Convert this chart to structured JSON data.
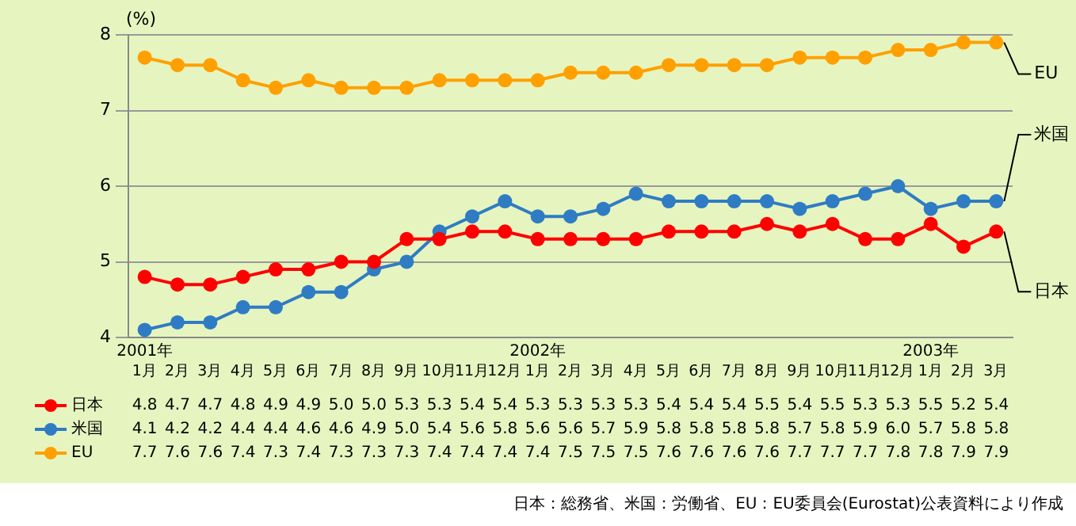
{
  "chart_data": {
    "type": "line",
    "ylabel": "(%)",
    "categories": [
      "2001年\n1月",
      "2月",
      "3月",
      "4月",
      "5月",
      "6月",
      "7月",
      "8月",
      "9月",
      "10月",
      "11月",
      "12月",
      "2002年\n1月",
      "2月",
      "3月",
      "4月",
      "5月",
      "6月",
      "7月",
      "8月",
      "9月",
      "10月",
      "11月",
      "12月",
      "2003年\n1月",
      "2月",
      "3月"
    ],
    "series": [
      {
        "name": "日本",
        "color": "#ff0000",
        "values": [
          4.8,
          4.7,
          4.7,
          4.8,
          4.9,
          4.9,
          5.0,
          5.0,
          5.3,
          5.3,
          5.4,
          5.4,
          5.3,
          5.3,
          5.3,
          5.3,
          5.4,
          5.4,
          5.4,
          5.5,
          5.4,
          5.5,
          5.3,
          5.3,
          5.5,
          5.2,
          5.4
        ],
        "value_labels": [
          "4.8",
          "4.7",
          "4.7",
          "4.8",
          "4.9",
          "4.9",
          "5.0",
          "5.0",
          "5.3",
          "5.3",
          "5.4",
          "5.4",
          "5.3",
          "5.3",
          "5.3",
          "5.3",
          "5.4",
          "5.4",
          "5.4",
          "5.5",
          "5.4",
          "5.5",
          "5.3",
          "5.3",
          "5.5",
          "5.2",
          "5.4"
        ]
      },
      {
        "name": "米国",
        "color": "#2f7cc4",
        "values": [
          4.1,
          4.2,
          4.2,
          4.4,
          4.4,
          4.6,
          4.6,
          4.9,
          5.0,
          5.4,
          5.6,
          5.8,
          5.6,
          5.6,
          5.7,
          5.9,
          5.8,
          5.8,
          5.8,
          5.8,
          5.7,
          5.8,
          5.9,
          6.0,
          5.7,
          5.8,
          5.8
        ],
        "value_labels": [
          "4.1",
          "4.2",
          "4.2",
          "4.4",
          "4.4",
          "4.6",
          "4.6",
          "4.9",
          "5.0",
          "5.4",
          "5.6",
          "5.8",
          "5.6",
          "5.6",
          "5.7",
          "5.9",
          "5.8",
          "5.8",
          "5.8",
          "5.8",
          "5.7",
          "5.8",
          "5.9",
          "6.0",
          "5.7",
          "5.8",
          "5.8"
        ]
      },
      {
        "name": "EU",
        "color": "#ffa000",
        "values": [
          7.7,
          7.6,
          7.6,
          7.4,
          7.3,
          7.4,
          7.3,
          7.3,
          7.3,
          7.4,
          7.4,
          7.4,
          7.4,
          7.5,
          7.5,
          7.5,
          7.6,
          7.6,
          7.6,
          7.6,
          7.7,
          7.7,
          7.7,
          7.8,
          7.8,
          7.9,
          7.9
        ],
        "value_labels": [
          "7.7",
          "7.6",
          "7.6",
          "7.4",
          "7.3",
          "7.4",
          "7.3",
          "7.3",
          "7.3",
          "7.4",
          "7.4",
          "7.4",
          "7.4",
          "7.5",
          "7.5",
          "7.5",
          "7.6",
          "7.6",
          "7.6",
          "7.6",
          "7.7",
          "7.7",
          "7.7",
          "7.8",
          "7.8",
          "7.9",
          "7.9"
        ]
      }
    ],
    "ylim": [
      4,
      8
    ],
    "yticks": [
      4,
      5,
      6,
      7,
      8
    ],
    "grid": "y",
    "marker": "circle",
    "legend": "bottom left",
    "annotations": [
      "日本：総務省、米国：労働省、EU：EU委員会(Eurostat)公表資料により作成"
    ]
  }
}
